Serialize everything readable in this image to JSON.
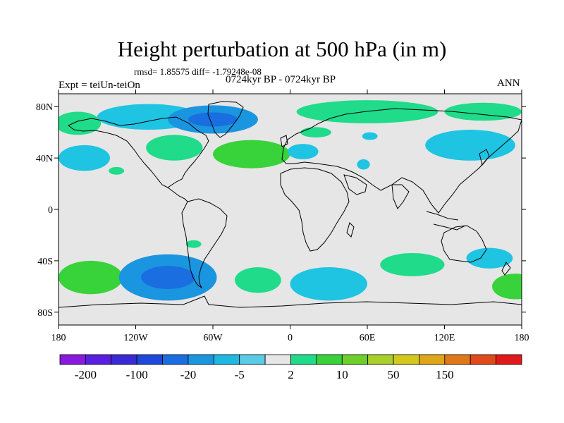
{
  "title": "Height perturbation at 500 hPa (in m)",
  "stats": "rmsd= 1.85575 diff= -1.79248e-08",
  "subtitle": "0724kyr BP - 0724kyr BP",
  "experiment": "Expt = teiUn-teiOn",
  "season": "ANN",
  "lat_ticks": [
    "80N",
    "40N",
    "0",
    "40S",
    "80S"
  ],
  "lon_ticks": [
    "180",
    "120W",
    "60W",
    "0",
    "60E",
    "120E",
    "180"
  ],
  "colorbar": {
    "labels": [
      "-200",
      "-100",
      "-20",
      "-5",
      "2",
      "10",
      "50",
      "150"
    ],
    "colors": [
      "#8a19e0",
      "#5a1ee0",
      "#3a2ad6",
      "#1f48da",
      "#1a6ee0",
      "#1a95e0",
      "#1fb8e0",
      "#5acbe6",
      "#e6e6e6",
      "#1fdb8a",
      "#38d23a",
      "#6fcf2a",
      "#a8cf2a",
      "#d4c81f",
      "#e0a61a",
      "#e0781a",
      "#e04a1a",
      "#e01a1a"
    ]
  },
  "chart_data": {
    "type": "heatmap",
    "projection": "cylindrical-equidistant",
    "xlim": [
      -180,
      180
    ],
    "ylim": [
      -90,
      90
    ],
    "anomaly_regions": [
      {
        "lon": -110,
        "lat": 72,
        "rx": 40,
        "ry": 10,
        "level": "light-blue"
      },
      {
        "lon": -60,
        "lat": 70,
        "rx": 35,
        "ry": 11,
        "level": "mid-blue"
      },
      {
        "lon": -165,
        "lat": 67,
        "rx": 18,
        "ry": 9,
        "level": "green"
      },
      {
        "lon": -90,
        "lat": 48,
        "rx": 22,
        "ry": 10,
        "level": "green"
      },
      {
        "lon": -30,
        "lat": 43,
        "rx": 30,
        "ry": 11,
        "level": "light-green"
      },
      {
        "lon": -160,
        "lat": 40,
        "rx": 20,
        "ry": 10,
        "level": "light-blue"
      },
      {
        "lon": -135,
        "lat": 30,
        "rx": 6,
        "ry": 3,
        "level": "green"
      },
      {
        "lon": 60,
        "lat": 76,
        "rx": 55,
        "ry": 9,
        "level": "green"
      },
      {
        "lon": 150,
        "lat": 76,
        "rx": 30,
        "ry": 7,
        "level": "green"
      },
      {
        "lon": 140,
        "lat": 50,
        "rx": 35,
        "ry": 12,
        "level": "light-blue"
      },
      {
        "lon": 10,
        "lat": 45,
        "rx": 12,
        "ry": 6,
        "level": "light-blue"
      },
      {
        "lon": 20,
        "lat": 60,
        "rx": 12,
        "ry": 4,
        "level": "green"
      },
      {
        "lon": 62,
        "lat": 57,
        "rx": 6,
        "ry": 3,
        "level": "light-blue"
      },
      {
        "lon": 57,
        "lat": 35,
        "rx": 5,
        "ry": 4,
        "level": "light-blue"
      },
      {
        "lon": -155,
        "lat": -53,
        "rx": 25,
        "ry": 13,
        "level": "light-green"
      },
      {
        "lon": -95,
        "lat": -53,
        "rx": 38,
        "ry": 18,
        "level": "mid-blue"
      },
      {
        "lon": -75,
        "lat": -27,
        "rx": 6,
        "ry": 3,
        "level": "green"
      },
      {
        "lon": -25,
        "lat": -55,
        "rx": 18,
        "ry": 10,
        "level": "green"
      },
      {
        "lon": 30,
        "lat": -58,
        "rx": 30,
        "ry": 13,
        "level": "light-blue"
      },
      {
        "lon": 95,
        "lat": -43,
        "rx": 25,
        "ry": 9,
        "level": "green"
      },
      {
        "lon": 155,
        "lat": -38,
        "rx": 18,
        "ry": 8,
        "level": "light-blue"
      },
      {
        "lon": 175,
        "lat": -60,
        "rx": 18,
        "ry": 10,
        "level": "light-green"
      }
    ]
  }
}
